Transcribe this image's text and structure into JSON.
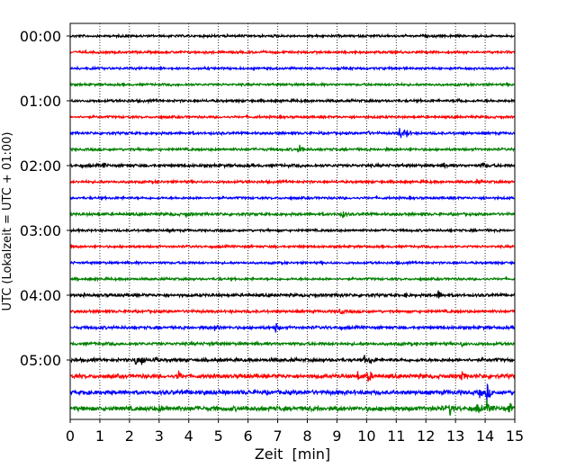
{
  "chart_data": {
    "type": "line",
    "title": "",
    "xlabel": "Zeit  [min]",
    "ylabel": "UTC (Lokalzeit = UTC + 01:00)",
    "xlim": [
      0,
      15
    ],
    "x_ticks": [
      "0",
      "1",
      "2",
      "3",
      "4",
      "5",
      "6",
      "7",
      "8",
      "9",
      "10",
      "11",
      "12",
      "13",
      "14",
      "15"
    ],
    "y_ticks": [
      "00:00",
      "01:00",
      "02:00",
      "03:00",
      "04:00",
      "05:00"
    ],
    "grid": "vertical dotted at each minute",
    "trace_minutes": 15,
    "trace_count": 24,
    "colors": [
      "#000000",
      "#ff0000",
      "#0000ff",
      "#008000"
    ],
    "noise_levels": [
      0.12,
      0.12,
      0.12,
      0.12,
      0.13,
      0.12,
      0.13,
      0.13,
      0.15,
      0.13,
      0.12,
      0.14,
      0.12,
      0.12,
      0.12,
      0.12,
      0.15,
      0.14,
      0.15,
      0.15,
      0.17,
      0.2,
      0.22,
      0.24
    ],
    "events": [
      {
        "trace": 4,
        "minute": 13.1,
        "amp": 0.3
      },
      {
        "trace": 6,
        "minute": 10.0,
        "amp": 0.3
      },
      {
        "trace": 6,
        "minute": 11.1,
        "amp": 1.0
      },
      {
        "trace": 6,
        "minute": 11.3,
        "amp": 0.9
      },
      {
        "trace": 7,
        "minute": 7.7,
        "amp": 0.8
      },
      {
        "trace": 8,
        "minute": 1.1,
        "amp": 0.3
      },
      {
        "trace": 8,
        "minute": 12.6,
        "amp": 0.3
      },
      {
        "trace": 8,
        "minute": 13.9,
        "amp": 0.5
      },
      {
        "trace": 9,
        "minute": 13.7,
        "amp": 0.3
      },
      {
        "trace": 11,
        "minute": 3.9,
        "amp": 0.4
      },
      {
        "trace": 11,
        "minute": 9.2,
        "amp": 0.4
      },
      {
        "trace": 16,
        "minute": 9.1,
        "amp": 0.3
      },
      {
        "trace": 16,
        "minute": 11.3,
        "amp": 0.3
      },
      {
        "trace": 16,
        "minute": 12.4,
        "amp": 0.7
      },
      {
        "trace": 17,
        "minute": 9.1,
        "amp": 0.4
      },
      {
        "trace": 18,
        "minute": 4.9,
        "amp": 0.8
      },
      {
        "trace": 18,
        "minute": 6.9,
        "amp": 0.9
      },
      {
        "trace": 19,
        "minute": 4.7,
        "amp": 0.2
      },
      {
        "trace": 19,
        "minute": 13.2,
        "amp": 0.3
      },
      {
        "trace": 20,
        "minute": 2.2,
        "amp": 0.7
      },
      {
        "trace": 20,
        "minute": 2.4,
        "amp": 0.9
      },
      {
        "trace": 20,
        "minute": 2.8,
        "amp": 0.5
      },
      {
        "trace": 20,
        "minute": 9.9,
        "amp": 0.6
      },
      {
        "trace": 20,
        "minute": 10.1,
        "amp": 0.5
      },
      {
        "trace": 21,
        "minute": 3.6,
        "amp": 0.8
      },
      {
        "trace": 21,
        "minute": 9.7,
        "amp": 0.5
      },
      {
        "trace": 21,
        "minute": 10.05,
        "amp": 0.9
      },
      {
        "trace": 21,
        "minute": 13.2,
        "amp": 0.6
      },
      {
        "trace": 22,
        "minute": 0.5,
        "amp": 0.4
      },
      {
        "trace": 22,
        "minute": 13.8,
        "amp": 0.6
      },
      {
        "trace": 22,
        "minute": 14.05,
        "amp": 1.3
      },
      {
        "trace": 23,
        "minute": 3.0,
        "amp": 0.3
      },
      {
        "trace": 23,
        "minute": 12.8,
        "amp": 0.9
      },
      {
        "trace": 23,
        "minute": 13.7,
        "amp": 0.7
      },
      {
        "trace": 23,
        "minute": 14.05,
        "amp": 0.9
      },
      {
        "trace": 23,
        "minute": 14.8,
        "amp": 0.8
      }
    ]
  }
}
